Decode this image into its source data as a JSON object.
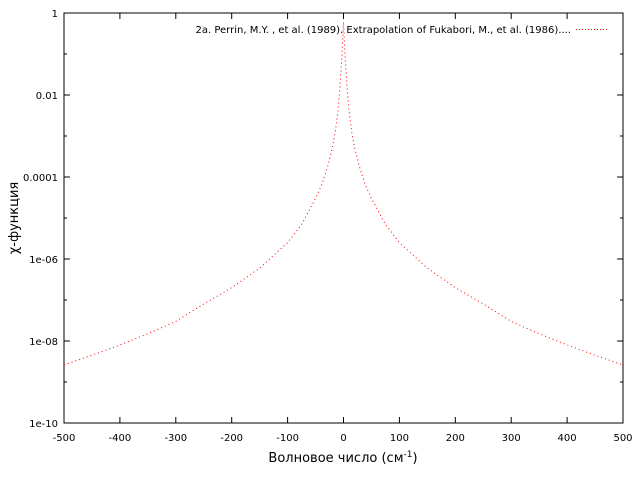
{
  "chart_data": {
    "type": "line",
    "xlabel": "Волновое число (см",
    "xlabel_sup": "-1",
    "xlabel_end": ")",
    "ylabel": "χ-функция",
    "yscale": "log",
    "xlim": [
      -500,
      500
    ],
    "ylim": [
      1e-10,
      1
    ],
    "x_ticks": [
      "-500",
      "-400",
      "-300",
      "-200",
      "-100",
      "0",
      "100",
      "200",
      "300",
      "400",
      "500"
    ],
    "y_ticks": [
      "1e-10",
      "1e-08",
      "1e-06",
      "0.0001",
      "0.01",
      "1"
    ],
    "grid": false,
    "legend_position": "top-right",
    "series": [
      {
        "name": "2a. Perrin, M.Y. , et al. (1989). Extrapolation of Fukabori, M., et al. (1986)....",
        "color": "#ff0000",
        "style": "dotted",
        "x": [
          -500,
          -450,
          -400,
          -350,
          -300,
          -250,
          -200,
          -150,
          -100,
          -75,
          -50,
          -40,
          -30,
          -20,
          -15,
          -10,
          -7,
          -5,
          -3,
          -2,
          -1,
          0,
          1,
          2,
          3,
          5,
          7,
          10,
          15,
          20,
          30,
          40,
          50,
          75,
          100,
          150,
          200,
          250,
          300,
          350,
          400,
          450,
          500
        ],
        "y": [
          2.6e-09,
          4.5e-09,
          8e-09,
          1.5e-08,
          3e-08,
          8e-08,
          2e-07,
          6e-07,
          2.5e-06,
          7e-06,
          3e-05,
          6e-05,
          0.00015,
          0.0005,
          0.0012,
          0.004,
          0.012,
          0.03,
          0.08,
          0.15,
          0.3,
          0.6,
          0.3,
          0.15,
          0.08,
          0.03,
          0.012,
          0.004,
          0.0012,
          0.0005,
          0.00015,
          6e-05,
          3e-05,
          7e-06,
          2.5e-06,
          6e-07,
          2e-07,
          8e-08,
          3e-08,
          1.5e-08,
          8e-09,
          4.5e-09,
          2.6e-09
        ]
      }
    ]
  }
}
